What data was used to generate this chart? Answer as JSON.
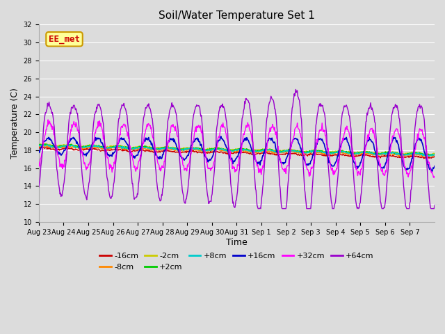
{
  "title": "Soil/Water Temperature Set 1",
  "ylabel": "Temperature (C)",
  "xlabel": "Time",
  "ylim": [
    10,
    32
  ],
  "yticks": [
    10,
    12,
    14,
    16,
    18,
    20,
    22,
    24,
    26,
    28,
    30,
    32
  ],
  "background_color": "#dcdcdc",
  "plot_bg_color": "#dcdcdc",
  "grid_color": "#ffffff",
  "series": {
    "-16cm": {
      "color": "#cc0000",
      "lw": 1.0
    },
    "-8cm": {
      "color": "#ff8800",
      "lw": 1.0
    },
    "-2cm": {
      "color": "#cccc00",
      "lw": 1.0
    },
    "+2cm": {
      "color": "#00cc00",
      "lw": 1.0
    },
    "+8cm": {
      "color": "#00cccc",
      "lw": 1.0
    },
    "+16cm": {
      "color": "#0000cc",
      "lw": 1.2
    },
    "+32cm": {
      "color": "#ff00ff",
      "lw": 1.0
    },
    "+64cm": {
      "color": "#9900cc",
      "lw": 1.0
    }
  },
  "annotation_text": "EE_met",
  "annotation_color": "#cc0000",
  "annotation_bg": "#ffff99",
  "annotation_border": "#cc9900",
  "n_days": 16,
  "points_per_day": 48
}
